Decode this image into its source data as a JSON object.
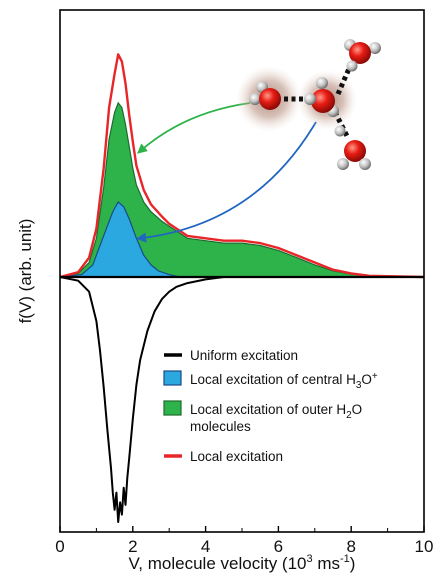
{
  "chart_data": {
    "type": "area",
    "xlabel_parts": [
      "V, molecule velocity (10",
      "3",
      " ms",
      "-1",
      ")"
    ],
    "ylabel": "f(V) (arb. unit)",
    "xlim": [
      0,
      10
    ],
    "x_ticks": [
      "0",
      "2",
      "4",
      "6",
      "8",
      "10"
    ],
    "y_ticks_shown": false,
    "baseline_divider": true,
    "top_panel": {
      "ylim": [
        0,
        100
      ],
      "series": [
        {
          "name": "Local excitation",
          "role": "line",
          "color": "#e8262a",
          "x": [
            0,
            0.5,
            0.8,
            1.0,
            1.2,
            1.35,
            1.5,
            1.6,
            1.7,
            1.8,
            1.9,
            2.0,
            2.1,
            2.3,
            2.5,
            2.8,
            3.0,
            3.2,
            3.5,
            4.0,
            4.5,
            5.0,
            5.5,
            6.0,
            6.5,
            7.0,
            7.5,
            8.0,
            8.5,
            10
          ],
          "y": [
            0,
            2,
            8,
            20,
            45,
            70,
            84,
            92,
            89,
            80,
            67,
            56,
            46,
            36,
            30,
            25,
            22,
            20,
            17,
            16,
            15,
            15,
            14,
            12,
            9,
            6,
            3,
            1.5,
            0.5,
            0
          ]
        },
        {
          "name": "Local excitation of outer H2O molecules",
          "role": "fill",
          "color": "#2db34a",
          "x": [
            0,
            0.5,
            0.8,
            1.0,
            1.2,
            1.35,
            1.5,
            1.6,
            1.7,
            1.8,
            1.9,
            2.0,
            2.1,
            2.3,
            2.5,
            2.8,
            3.0,
            3.2,
            3.5,
            4.0,
            4.5,
            5.0,
            5.5,
            6.0,
            6.5,
            7.0,
            7.5,
            8.0,
            8.5,
            10
          ],
          "y": [
            0,
            1.5,
            6,
            16,
            37,
            57,
            68,
            72,
            70,
            63,
            54,
            45,
            38,
            31,
            27,
            23,
            21,
            19,
            16,
            15,
            14,
            14,
            13,
            11,
            8,
            5,
            2.5,
            1.2,
            0.4,
            0
          ]
        },
        {
          "name": "Local excitation of central H3O+",
          "role": "fill",
          "color": "#2ca8e0",
          "x": [
            0,
            0.6,
            0.9,
            1.1,
            1.3,
            1.45,
            1.6,
            1.75,
            1.9,
            2.1,
            2.3,
            2.5,
            2.7,
            3.0,
            3.3,
            10
          ],
          "y": [
            0,
            1,
            5,
            13,
            21,
            27,
            31,
            29,
            24,
            16,
            9,
            5,
            2.5,
            1,
            0,
            0
          ]
        }
      ]
    },
    "bottom_panel": {
      "ylim": [
        -100,
        0
      ],
      "series": [
        {
          "name": "Uniform excitation",
          "role": "line",
          "color": "#000000",
          "x": [
            0,
            0.5,
            0.8,
            1.0,
            1.1,
            1.2,
            1.3,
            1.4,
            1.45,
            1.5,
            1.55,
            1.6,
            1.65,
            1.7,
            1.75,
            1.8,
            1.85,
            1.9,
            2.0,
            2.1,
            2.2,
            2.4,
            2.6,
            2.8,
            3.0,
            3.2,
            3.5,
            4.0,
            4.5,
            5.0,
            10
          ],
          "y": [
            0,
            -1.5,
            -6,
            -18,
            -30,
            -45,
            -62,
            -78,
            -88,
            -95,
            -88,
            -100,
            -92,
            -97,
            -86,
            -93,
            -82,
            -74,
            -58,
            -44,
            -34,
            -22,
            -14,
            -9,
            -6,
            -4,
            -2.5,
            -1,
            0,
            0,
            0
          ]
        }
      ]
    },
    "legend": {
      "placement": "bottom-right",
      "entries": [
        {
          "kind": "line",
          "color": "#000000",
          "lines": [
            [
              "Uniform excitation"
            ]
          ]
        },
        {
          "kind": "swatch",
          "color": "#2ca8e0",
          "border": "#1a4a8a",
          "lines": [
            [
              "Local excitation of central H",
              {
                "sub": "3"
              },
              "O",
              {
                "sup": "+"
              }
            ]
          ]
        },
        {
          "kind": "swatch",
          "color": "#2db34a",
          "border": "#1e6b30",
          "lines": [
            [
              "Local excitation of outer H",
              {
                "sub": "2"
              },
              "O"
            ],
            [
              "molecules"
            ]
          ]
        },
        {
          "kind": "line",
          "color": "#e8262a",
          "lines": [
            [
              "Local excitation"
            ]
          ]
        }
      ]
    },
    "annotations": [
      {
        "type": "arrow",
        "color": "#2db34a",
        "from_icon": "left-water-molecule-icon",
        "to": [
          2.2,
          52
        ]
      },
      {
        "type": "arrow",
        "color": "#2066c0",
        "from_icon": "central-hydronium-icon",
        "to": [
          2.2,
          16
        ]
      }
    ],
    "icons": [
      "left-water-molecule-icon",
      "central-hydronium-icon",
      "top-right-water-molecule-icon",
      "bottom-right-water-molecule-icon"
    ]
  }
}
